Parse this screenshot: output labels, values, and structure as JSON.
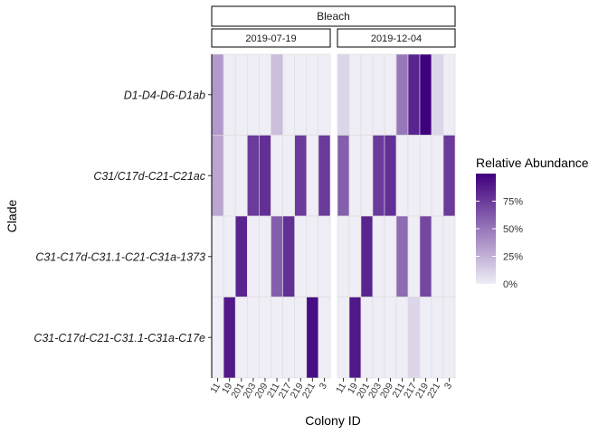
{
  "chart_data": {
    "type": "heatmap",
    "facet_title": "Bleach",
    "panels": [
      "2019-07-19",
      "2019-12-04"
    ],
    "xlabel": "Colony ID",
    "ylabel": "Clade",
    "x": [
      "11",
      "19",
      "201",
      "203",
      "209",
      "211",
      "217",
      "219",
      "221",
      "3"
    ],
    "y": [
      "D1-D4-D6-D1ab",
      "C31/C17d-C21-C21ac",
      "C31-C17d-C31.1-C21-C31a-1373",
      "C31-C17d-C21-C31.1-C31a-C17e"
    ],
    "legend": {
      "title": "Relative Abundance",
      "ticks": [
        "0%",
        "25%",
        "50%",
        "75%"
      ],
      "tick_values": [
        0,
        25,
        50,
        75
      ],
      "range": [
        0,
        100
      ],
      "low_color": "#efedf5",
      "high_color": "#3f007d"
    },
    "values_percent": {
      "2019-07-19": [
        [
          35,
          0,
          0,
          0,
          0,
          20,
          0,
          0,
          0,
          0
        ],
        [
          30,
          0,
          0,
          75,
          80,
          0,
          0,
          75,
          0,
          75
        ],
        [
          0,
          0,
          85,
          0,
          0,
          60,
          80,
          0,
          0,
          0
        ],
        [
          0,
          90,
          0,
          0,
          0,
          0,
          0,
          0,
          95,
          0
        ]
      ],
      "2019-12-04": [
        [
          10,
          0,
          0,
          0,
          0,
          50,
          85,
          100,
          10,
          0
        ],
        [
          60,
          0,
          0,
          75,
          80,
          0,
          0,
          0,
          0,
          75
        ],
        [
          0,
          0,
          85,
          0,
          0,
          55,
          0,
          70,
          0,
          0
        ],
        [
          0,
          90,
          0,
          0,
          0,
          0,
          10,
          0,
          0,
          0
        ]
      ]
    }
  }
}
